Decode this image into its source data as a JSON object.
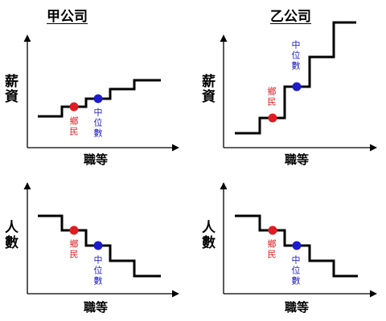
{
  "titles": {
    "left": "甲公司",
    "right": "乙公司"
  },
  "y_labels": {
    "salary": "薪資",
    "count": "人數"
  },
  "x_label": "職等",
  "markers": {
    "villager": "鄉民",
    "median": "中位數"
  },
  "colors": {
    "villager": "#e11b22",
    "median": "#1c1ccc",
    "line": "#000000"
  },
  "panels": [
    {
      "id": "top-left",
      "title_key": "left",
      "y_key": "salary",
      "steps": [
        [
          1,
          0
        ],
        [
          2,
          1
        ],
        [
          3,
          2
        ],
        [
          4,
          3
        ],
        [
          5,
          4
        ]
      ],
      "villager_step": 2,
      "median_step": 3
    },
    {
      "id": "top-right",
      "title_key": "right",
      "y_key": "salary",
      "steps": [
        [
          1,
          0
        ],
        [
          2,
          3
        ],
        [
          3,
          6
        ],
        [
          4,
          9
        ],
        [
          5,
          12
        ]
      ],
      "villager_step": 2,
      "median_step": 3
    },
    {
      "id": "bottom-left",
      "title_key": "left",
      "y_key": "count",
      "steps": [
        [
          1,
          4
        ],
        [
          2,
          3
        ],
        [
          3,
          2
        ],
        [
          4,
          1
        ],
        [
          5,
          0
        ]
      ],
      "villager_step": 2,
      "median_step": 3
    },
    {
      "id": "bottom-right",
      "title_key": "right",
      "y_key": "count",
      "steps": [
        [
          1,
          4
        ],
        [
          2,
          3
        ],
        [
          3,
          2
        ],
        [
          4,
          1
        ],
        [
          5,
          0
        ]
      ],
      "villager_step": 2,
      "median_step": 3
    }
  ]
}
